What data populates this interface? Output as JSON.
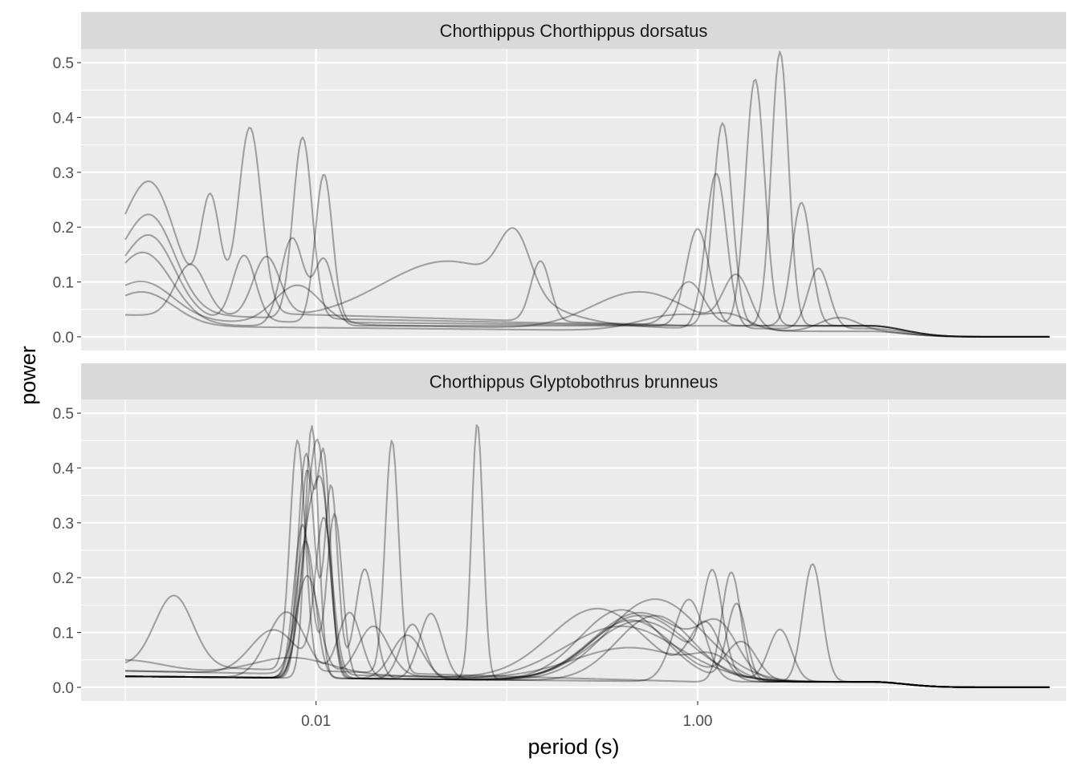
{
  "chart_data": {
    "type": "line",
    "x_scale": "log10",
    "xlabel": "period (s)",
    "ylabel": "power",
    "x_ticks": [
      {
        "value": 0.01,
        "label": "0.01"
      },
      {
        "value": 1.0,
        "label": "1.00"
      }
    ],
    "x_minor_ticks": [
      0.001,
      0.1,
      10
    ],
    "xlim": [
      0.001,
      70
    ],
    "y_ticks": [
      {
        "value": 0.0,
        "label": "0.0"
      },
      {
        "value": 0.1,
        "label": "0.1"
      },
      {
        "value": 0.2,
        "label": "0.2"
      },
      {
        "value": 0.3,
        "label": "0.3"
      },
      {
        "value": 0.4,
        "label": "0.4"
      },
      {
        "value": 0.5,
        "label": "0.5"
      }
    ],
    "ylim": [
      -0.025,
      0.525
    ],
    "line_color": "#000000",
    "line_opacity": 0.32,
    "panel_background": "#EBEBEB",
    "strip_background": "#D9D9D9",
    "grid": true,
    "panels": [
      {
        "title": "Chorthippus Chorthippus dorsatus",
        "series": [
          {
            "peaks": [
              [
                0.001,
                0.1,
                0.2
              ],
              [
                0.0014,
                0.155,
                0.12
              ],
              [
                0.0028,
                0.2,
                0.05
              ],
              [
                0.0045,
                0.338,
                0.06
              ],
              [
                0.15,
                0.11,
                0.05
              ],
              [
                1.35,
                0.37,
                0.05
              ]
            ],
            "base": [
              0.05,
              0.02
            ],
            "floor": 0.04
          },
          {
            "peaks": [
              [
                0.001,
                0.08,
                0.2
              ],
              [
                0.0014,
                0.12,
                0.12
              ],
              [
                0.0085,
                0.33,
                0.05
              ],
              [
                0.9,
                0.08,
                0.08
              ],
              [
                2.0,
                0.45,
                0.05
              ]
            ],
            "base": [
              0.04,
              0.02
            ],
            "floor": 0.03
          },
          {
            "peaks": [
              [
                0.001,
                0.07,
                0.2
              ],
              [
                0.0014,
                0.1,
                0.12
              ],
              [
                0.0042,
                0.12,
                0.06
              ],
              [
                0.011,
                0.27,
                0.045
              ],
              [
                2.7,
                0.5,
                0.045
              ]
            ],
            "base": [
              0.03,
              0.02
            ],
            "floor": 0.03
          },
          {
            "peaks": [
              [
                0.001,
                0.05,
                0.2
              ],
              [
                0.0013,
                0.09,
                0.14
              ],
              [
                0.0075,
                0.16,
                0.06
              ],
              [
                0.011,
                0.12,
                0.05
              ],
              [
                1.0,
                0.177,
                0.06
              ],
              [
                3.5,
                0.225,
                0.05
              ]
            ],
            "base": [
              0.02,
              0.02
            ],
            "floor": 0.02
          },
          {
            "peaks": [
              [
                0.0022,
                0.095,
                0.08
              ],
              [
                0.0055,
                0.11,
                0.07
              ],
              [
                0.05,
                0.112,
                0.35
              ],
              [
                0.11,
                0.105,
                0.08
              ],
              [
                1.25,
                0.283,
                0.055
              ],
              [
                4.3,
                0.11,
                0.055
              ]
            ],
            "base": [
              0.04,
              0.015
            ],
            "floor": 0.02
          },
          {
            "peaks": [
              [
                0.001,
                0.03,
                0.2
              ],
              [
                0.0013,
                0.045,
                0.15
              ],
              [
                0.008,
                0.07,
                0.12
              ],
              [
                0.5,
                0.07,
                0.25
              ],
              [
                1.6,
                0.095,
                0.07
              ],
              [
                5.5,
                0.025,
                0.1
              ]
            ],
            "base": [
              0.03,
              0.01
            ],
            "floor": 0.015
          },
          {
            "peaks": [
              [
                0.001,
                0.025,
                0.2
              ],
              [
                0.0013,
                0.04,
                0.15
              ],
              [
                0.8,
                0.03,
                0.2
              ],
              [
                1.5,
                0.02,
                0.1
              ]
            ],
            "base": [
              0.02,
              0.01
            ],
            "floor": 0.01
          }
        ]
      },
      {
        "title": "Chorthippus Glyptobothrus brunneus",
        "series": [
          {
            "peaks": [
              [
                0.0018,
                0.13,
                0.1
              ],
              [
                0.008,
                0.42,
                0.04
              ],
              [
                0.025,
                0.425,
                0.035
              ],
              [
                1.5,
                0.2,
                0.05
              ],
              [
                4.0,
                0.215,
                0.05
              ]
            ],
            "base": [
              0.04,
              0.01
            ],
            "floor": 0.01
          },
          {
            "peaks": [
              [
                0.0095,
                0.46,
                0.035
              ],
              [
                0.07,
                0.468,
                0.03
              ],
              [
                0.5,
                0.11,
                0.25
              ],
              [
                1.2,
                0.17,
                0.05
              ]
            ],
            "base": [
              0.02,
              0.01
            ],
            "floor": 0.01
          },
          {
            "peaks": [
              [
                0.0088,
                0.4,
                0.04
              ],
              [
                0.011,
                0.395,
                0.035
              ],
              [
                0.4,
                0.13,
                0.22
              ],
              [
                1.6,
                0.14,
                0.05
              ]
            ],
            "base": [
              0.02,
              0.01
            ],
            "floor": 0.01
          },
          {
            "peaks": [
              [
                0.009,
                0.38,
                0.04
              ],
              [
                0.012,
                0.35,
                0.035
              ],
              [
                0.018,
                0.2,
                0.05
              ],
              [
                0.04,
                0.12,
                0.06
              ],
              [
                0.6,
                0.15,
                0.25
              ]
            ],
            "base": [
              0.02,
              0.01
            ],
            "floor": 0.01
          },
          {
            "peaks": [
              [
                0.0085,
                0.28,
                0.045
              ],
              [
                0.0125,
                0.3,
                0.04
              ],
              [
                0.6,
                0.12,
                0.2
              ],
              [
                2.7,
                0.095,
                0.06
              ]
            ],
            "base": [
              0.02,
              0.01
            ],
            "floor": 0.01
          },
          {
            "peaks": [
              [
                0.0092,
                0.27,
                0.05
              ],
              [
                0.011,
                0.26,
                0.04
              ],
              [
                0.032,
                0.1,
                0.06
              ],
              [
                0.9,
                0.15,
                0.08
              ]
            ],
            "base": [
              0.02,
              0.01
            ],
            "floor": 0.01
          },
          {
            "peaks": [
              [
                0.0088,
                0.25,
                0.05
              ],
              [
                0.03,
                0.08,
                0.08
              ],
              [
                0.5,
                0.125,
                0.25
              ],
              [
                1.3,
                0.08,
                0.1
              ]
            ],
            "base": [
              0.02,
              0.01
            ],
            "floor": 0.01
          },
          {
            "peaks": [
              [
                0.0095,
                0.22,
                0.06
              ],
              [
                0.0105,
                0.25,
                0.05
              ],
              [
                0.4,
                0.1,
                0.3
              ]
            ],
            "base": [
              0.02,
              0.01
            ],
            "floor": 0.01
          },
          {
            "peaks": [
              [
                0.009,
                0.18,
                0.06
              ],
              [
                0.02,
                0.09,
                0.08
              ],
              [
                0.3,
                0.13,
                0.25
              ],
              [
                1.1,
                0.1,
                0.08
              ]
            ],
            "base": [
              0.03,
              0.01
            ],
            "floor": 0.01
          },
          {
            "peaks": [
              [
                0.007,
                0.12,
                0.1
              ],
              [
                0.015,
                0.12,
                0.06
              ],
              [
                0.5,
                0.12,
                0.25
              ]
            ],
            "base": [
              0.02,
              0.01
            ],
            "floor": 0.01
          },
          {
            "peaks": [
              [
                0.006,
                0.08,
                0.12
              ],
              [
                0.011,
                0.28,
                0.045
              ],
              [
                0.45,
                0.11,
                0.22
              ],
              [
                1.7,
                0.07,
                0.08
              ]
            ],
            "base": [
              0.03,
              0.01
            ],
            "floor": 0.01
          },
          {
            "peaks": [
              [
                0.001,
                0.02,
                0.2
              ],
              [
                0.0075,
                0.03,
                0.2
              ],
              [
                0.45,
                0.06,
                0.3
              ],
              [
                1.2,
                0.03,
                0.1
              ]
            ],
            "base": [
              0.03,
              0.01
            ],
            "floor": 0.01
          }
        ]
      }
    ]
  }
}
